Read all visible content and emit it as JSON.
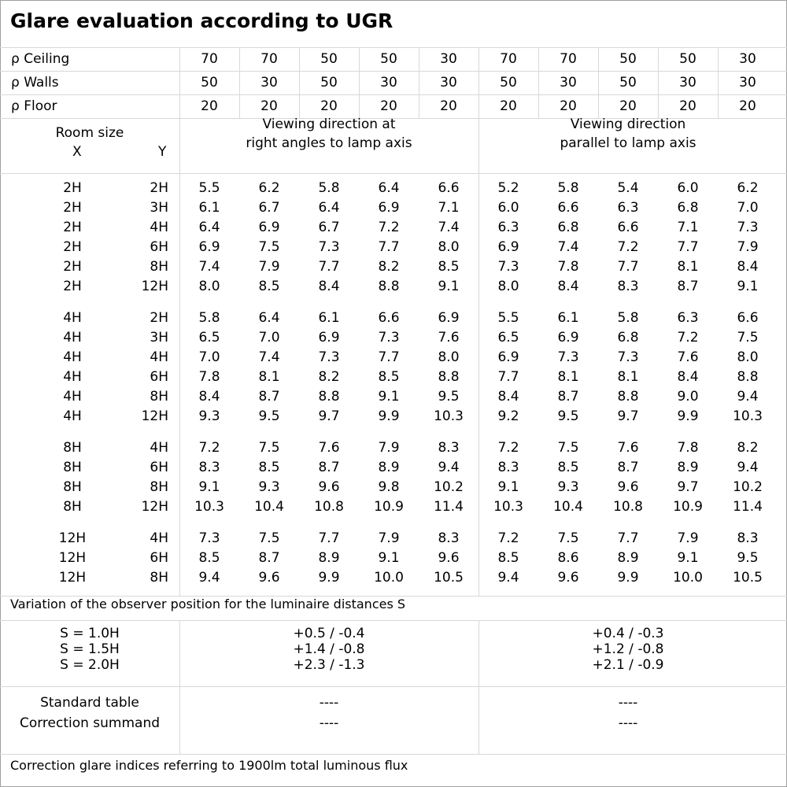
{
  "title": "Glare evaluation according to UGR",
  "reflectance": [
    {
      "label": "ρ Ceiling",
      "values": [
        "70",
        "70",
        "50",
        "50",
        "30",
        "70",
        "70",
        "50",
        "50",
        "30"
      ]
    },
    {
      "label": "ρ Walls",
      "values": [
        "50",
        "30",
        "50",
        "30",
        "30",
        "50",
        "30",
        "50",
        "30",
        "30"
      ]
    },
    {
      "label": "ρ Floor",
      "values": [
        "20",
        "20",
        "20",
        "20",
        "20",
        "20",
        "20",
        "20",
        "20",
        "20"
      ]
    }
  ],
  "room_size": {
    "label": "Room size",
    "x": "X",
    "y": "Y"
  },
  "viewing": {
    "right_angles": [
      "Viewing direction at",
      "right angles to lamp axis"
    ],
    "parallel": [
      "Viewing direction",
      "parallel to lamp axis"
    ]
  },
  "groups": [
    {
      "rows": [
        {
          "x": "2H",
          "y": "2H",
          "v": [
            "5.5",
            "6.2",
            "5.8",
            "6.4",
            "6.6",
            "5.2",
            "5.8",
            "5.4",
            "6.0",
            "6.2"
          ]
        },
        {
          "x": "2H",
          "y": "3H",
          "v": [
            "6.1",
            "6.7",
            "6.4",
            "6.9",
            "7.1",
            "6.0",
            "6.6",
            "6.3",
            "6.8",
            "7.0"
          ]
        },
        {
          "x": "2H",
          "y": "4H",
          "v": [
            "6.4",
            "6.9",
            "6.7",
            "7.2",
            "7.4",
            "6.3",
            "6.8",
            "6.6",
            "7.1",
            "7.3"
          ]
        },
        {
          "x": "2H",
          "y": "6H",
          "v": [
            "6.9",
            "7.5",
            "7.3",
            "7.7",
            "8.0",
            "6.9",
            "7.4",
            "7.2",
            "7.7",
            "7.9"
          ]
        },
        {
          "x": "2H",
          "y": "8H",
          "v": [
            "7.4",
            "7.9",
            "7.7",
            "8.2",
            "8.5",
            "7.3",
            "7.8",
            "7.7",
            "8.1",
            "8.4"
          ]
        },
        {
          "x": "2H",
          "y": "12H",
          "v": [
            "8.0",
            "8.5",
            "8.4",
            "8.8",
            "9.1",
            "8.0",
            "8.4",
            "8.3",
            "8.7",
            "9.1"
          ]
        }
      ]
    },
    {
      "rows": [
        {
          "x": "4H",
          "y": "2H",
          "v": [
            "5.8",
            "6.4",
            "6.1",
            "6.6",
            "6.9",
            "5.5",
            "6.1",
            "5.8",
            "6.3",
            "6.6"
          ]
        },
        {
          "x": "4H",
          "y": "3H",
          "v": [
            "6.5",
            "7.0",
            "6.9",
            "7.3",
            "7.6",
            "6.5",
            "6.9",
            "6.8",
            "7.2",
            "7.5"
          ]
        },
        {
          "x": "4H",
          "y": "4H",
          "v": [
            "7.0",
            "7.4",
            "7.3",
            "7.7",
            "8.0",
            "6.9",
            "7.3",
            "7.3",
            "7.6",
            "8.0"
          ]
        },
        {
          "x": "4H",
          "y": "6H",
          "v": [
            "7.8",
            "8.1",
            "8.2",
            "8.5",
            "8.8",
            "7.7",
            "8.1",
            "8.1",
            "8.4",
            "8.8"
          ]
        },
        {
          "x": "4H",
          "y": "8H",
          "v": [
            "8.4",
            "8.7",
            "8.8",
            "9.1",
            "9.5",
            "8.4",
            "8.7",
            "8.8",
            "9.0",
            "9.4"
          ]
        },
        {
          "x": "4H",
          "y": "12H",
          "v": [
            "9.3",
            "9.5",
            "9.7",
            "9.9",
            "10.3",
            "9.2",
            "9.5",
            "9.7",
            "9.9",
            "10.3"
          ]
        }
      ]
    },
    {
      "rows": [
        {
          "x": "8H",
          "y": "4H",
          "v": [
            "7.2",
            "7.5",
            "7.6",
            "7.9",
            "8.3",
            "7.2",
            "7.5",
            "7.6",
            "7.8",
            "8.2"
          ]
        },
        {
          "x": "8H",
          "y": "6H",
          "v": [
            "8.3",
            "8.5",
            "8.7",
            "8.9",
            "9.4",
            "8.3",
            "8.5",
            "8.7",
            "8.9",
            "9.4"
          ]
        },
        {
          "x": "8H",
          "y": "8H",
          "v": [
            "9.1",
            "9.3",
            "9.6",
            "9.8",
            "10.2",
            "9.1",
            "9.3",
            "9.6",
            "9.7",
            "10.2"
          ]
        },
        {
          "x": "8H",
          "y": "12H",
          "v": [
            "10.3",
            "10.4",
            "10.8",
            "10.9",
            "11.4",
            "10.3",
            "10.4",
            "10.8",
            "10.9",
            "11.4"
          ]
        }
      ]
    },
    {
      "rows": [
        {
          "x": "12H",
          "y": "4H",
          "v": [
            "7.3",
            "7.5",
            "7.7",
            "7.9",
            "8.3",
            "7.2",
            "7.5",
            "7.7",
            "7.9",
            "8.3"
          ]
        },
        {
          "x": "12H",
          "y": "6H",
          "v": [
            "8.5",
            "8.7",
            "8.9",
            "9.1",
            "9.6",
            "8.5",
            "8.6",
            "8.9",
            "9.1",
            "9.5"
          ]
        },
        {
          "x": "12H",
          "y": "8H",
          "v": [
            "9.4",
            "9.6",
            "9.9",
            "10.0",
            "10.5",
            "9.4",
            "9.6",
            "9.9",
            "10.0",
            "10.5"
          ]
        }
      ]
    }
  ],
  "variation": {
    "label": "Variation of the observer position for the luminaire distances S",
    "rows": [
      {
        "s": "S = 1.0H",
        "right": "+0.5 / -0.4",
        "parallel": "+0.4 / -0.3"
      },
      {
        "s": "S = 1.5H",
        "right": "+1.4 / -0.8",
        "parallel": "+1.2 / -0.8"
      },
      {
        "s": "S = 2.0H",
        "right": "+2.3 / -1.3",
        "parallel": "+2.1 / -0.9"
      }
    ]
  },
  "standard": {
    "labels": [
      "Standard table",
      "Correction summand"
    ],
    "right": [
      "----",
      "----"
    ],
    "parallel": [
      "----",
      "----"
    ]
  },
  "footer": "Correction glare indices referring to 1900lm total luminous flux"
}
